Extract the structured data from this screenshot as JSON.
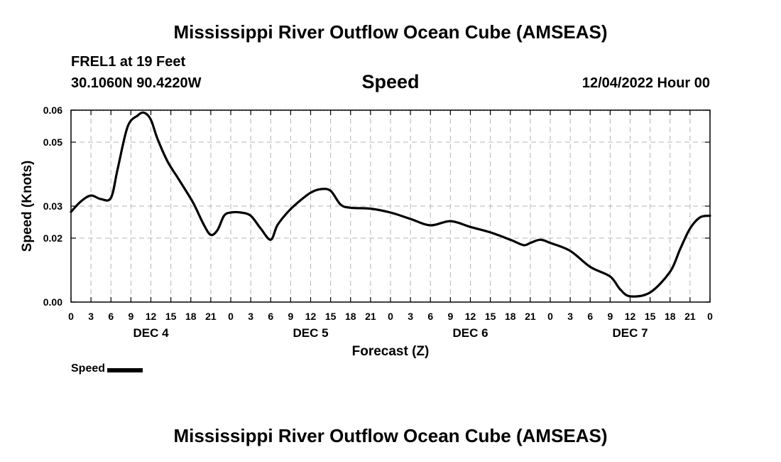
{
  "page": {
    "title_top": "Mississippi River Outflow Ocean Cube (AMSEAS)",
    "title_bottom": "Mississippi River Outflow Ocean Cube (AMSEAS)",
    "station": "FREL1 at 19 Feet",
    "coordinates": "30.1060N  90.4220W",
    "datetime": "12/04/2022 Hour 00"
  },
  "chart_data": {
    "type": "line",
    "title": "Speed",
    "xlabel": "Forecast (Z)",
    "ylabel": "Speed (Knots)",
    "ylim": [
      0,
      0.06
    ],
    "yticks": [
      {
        "value": 0.0,
        "label": "0.00"
      },
      {
        "value": 0.02,
        "label": "0.02"
      },
      {
        "value": 0.03,
        "label": "0.03"
      },
      {
        "value": 0.05,
        "label": "0.05"
      },
      {
        "value": 0.06,
        "label": "0.06"
      }
    ],
    "xlim": [
      0,
      96
    ],
    "xtick_labels": [
      "0",
      "3",
      "6",
      "9",
      "12",
      "15",
      "18",
      "21",
      "0",
      "3",
      "6",
      "9",
      "12",
      "15",
      "18",
      "21",
      "0",
      "3",
      "6",
      "9",
      "12",
      "15",
      "18",
      "21",
      "0",
      "3",
      "6",
      "9",
      "12",
      "15",
      "18",
      "21",
      "0"
    ],
    "day_labels": [
      {
        "label": "DEC 4",
        "hour": 12
      },
      {
        "label": "DEC 5",
        "hour": 36
      },
      {
        "label": "DEC 6",
        "hour": 60
      },
      {
        "label": "DEC 7",
        "hour": 84
      }
    ],
    "grid": true,
    "legend": {
      "position": "bottom-left",
      "entries": [
        "Speed"
      ]
    },
    "series": [
      {
        "name": "Speed",
        "color": "#000000",
        "x": [
          0,
          1.5,
          3,
          4.5,
          6,
          7,
          8.5,
          10,
          11,
          12,
          13,
          14.5,
          16,
          17.5,
          18.5,
          20,
          21,
          22,
          23,
          24,
          25.5,
          27,
          28.5,
          30,
          31,
          32.5,
          34,
          36,
          37.5,
          39,
          40.5,
          42,
          45,
          48,
          51,
          54,
          57,
          60,
          63,
          66,
          68,
          69,
          70.5,
          72,
          75,
          78,
          81,
          82.5,
          84,
          87,
          90,
          91.5,
          93,
          94.5,
          96
        ],
        "y": [
          0.0282,
          0.0315,
          0.0333,
          0.0322,
          0.0326,
          0.0415,
          0.0548,
          0.0583,
          0.0592,
          0.057,
          0.051,
          0.044,
          0.039,
          0.034,
          0.0305,
          0.024,
          0.021,
          0.0225,
          0.027,
          0.028,
          0.028,
          0.027,
          0.023,
          0.0195,
          0.024,
          0.028,
          0.031,
          0.0342,
          0.0353,
          0.0348,
          0.0305,
          0.0295,
          0.0292,
          0.028,
          0.026,
          0.024,
          0.0253,
          0.0235,
          0.0218,
          0.0195,
          0.0178,
          0.0185,
          0.0195,
          0.0185,
          0.016,
          0.011,
          0.008,
          0.004,
          0.0018,
          0.003,
          0.0095,
          0.0165,
          0.023,
          0.0265,
          0.027
        ]
      }
    ]
  }
}
